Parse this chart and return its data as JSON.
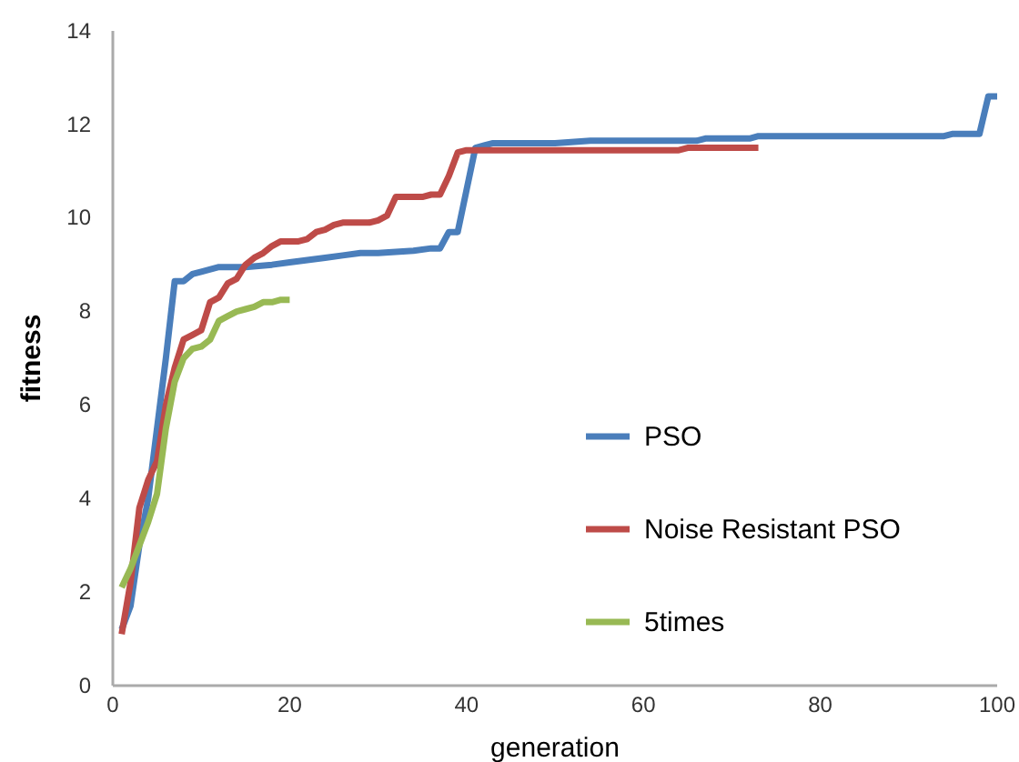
{
  "chart_data": {
    "type": "line",
    "xlabel": "generation",
    "ylabel": "fitness",
    "xlim": [
      0,
      100
    ],
    "ylim": [
      0,
      14
    ],
    "xticks": [
      0,
      20,
      40,
      60,
      80,
      100
    ],
    "yticks": [
      0,
      2,
      4,
      6,
      8,
      10,
      12,
      14
    ],
    "grid": false,
    "legend": "right",
    "marker": "none",
    "line_style": "solid",
    "series": [
      {
        "name": "PSO",
        "color": "#4a7ebb",
        "x": [
          1,
          2,
          3,
          4,
          5,
          6,
          7,
          8,
          9,
          10,
          12,
          15,
          18,
          20,
          22,
          24,
          26,
          28,
          30,
          34,
          36,
          37,
          38,
          39,
          40,
          41,
          42,
          43,
          50,
          54,
          60,
          66,
          67,
          72,
          73,
          80,
          90,
          94,
          95,
          98,
          99,
          100
        ],
        "values": [
          1.2,
          1.7,
          3.0,
          4.0,
          5.5,
          7.0,
          8.65,
          8.65,
          8.8,
          8.85,
          8.95,
          8.95,
          9.0,
          9.05,
          9.1,
          9.15,
          9.2,
          9.25,
          9.25,
          9.3,
          9.35,
          9.35,
          9.7,
          9.7,
          10.6,
          11.5,
          11.55,
          11.6,
          11.6,
          11.65,
          11.65,
          11.65,
          11.7,
          11.7,
          11.75,
          11.75,
          11.75,
          11.75,
          11.8,
          11.8,
          12.6,
          12.6
        ]
      },
      {
        "name": "Noise Resistant PSO",
        "color": "#be4b48",
        "x": [
          1,
          2,
          3,
          4,
          5,
          6,
          7,
          8,
          9,
          10,
          11,
          12,
          13,
          14,
          15,
          16,
          17,
          18,
          19,
          21,
          22,
          23,
          24,
          25,
          26,
          29,
          30,
          31,
          32,
          35,
          36,
          37,
          38,
          39,
          40,
          50,
          64,
          65,
          73
        ],
        "values": [
          1.1,
          2.2,
          3.8,
          4.4,
          4.8,
          6.0,
          6.8,
          7.4,
          7.5,
          7.6,
          8.2,
          8.3,
          8.6,
          8.7,
          9.0,
          9.15,
          9.25,
          9.4,
          9.5,
          9.5,
          9.55,
          9.7,
          9.75,
          9.85,
          9.9,
          9.9,
          9.95,
          10.05,
          10.45,
          10.45,
          10.5,
          10.5,
          10.9,
          11.4,
          11.45,
          11.45,
          11.45,
          11.5,
          11.5
        ]
      },
      {
        "name": "5times",
        "color": "#98b954",
        "x": [
          1,
          2,
          3,
          4,
          5,
          6,
          7,
          8,
          9,
          10,
          11,
          12,
          13,
          14,
          15,
          16,
          17,
          18,
          19,
          20
        ],
        "values": [
          2.1,
          2.5,
          3.0,
          3.5,
          4.1,
          5.5,
          6.5,
          7.0,
          7.2,
          7.25,
          7.4,
          7.8,
          7.9,
          8.0,
          8.05,
          8.1,
          8.2,
          8.2,
          8.25,
          8.25
        ]
      }
    ]
  }
}
